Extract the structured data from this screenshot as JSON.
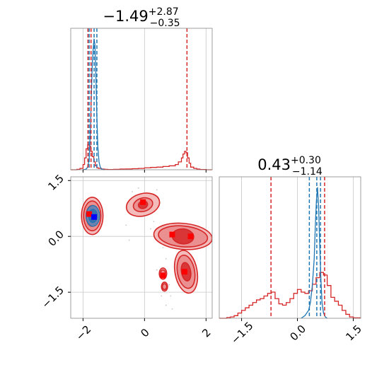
{
  "chart_data": {
    "type": "corner",
    "colors": {
      "red": "#d62728",
      "blue": "#1f77b4",
      "red_fill_light": "#f3b4b4",
      "red_fill_mid": "#e88888",
      "red_fill_dark": "#d62728",
      "marker_red": "#ff0000",
      "marker_blue": "#0000ff",
      "grid": "#c8c8c8",
      "spine": "#888888"
    },
    "grid": true,
    "panels": [
      {
        "id": "param1-hist",
        "type": "histogram",
        "title": {
          "median": "−1.49",
          "plus": "+2.87",
          "minus": "−0.35"
        },
        "xlim": [
          -2.4,
          2.2
        ],
        "xticks": [
          -2,
          0,
          2
        ],
        "show_tick_labels": false,
        "quantiles": {
          "red": [
            -1.84,
            -1.74,
            1.38
          ],
          "blue": [
            -1.8,
            -1.64,
            -1.55
          ]
        },
        "series": [
          {
            "name": "",
            "color": "#d62728",
            "x": [
              -2.4,
              -2.3,
              -2.2,
              -2.1,
              -2.0,
              -1.95,
              -1.9,
              -1.85,
              -1.8,
              -1.75,
              -1.7,
              -1.65,
              -1.6,
              -1.55,
              -1.5,
              -1.4,
              -1.3,
              -1.2,
              -1.0,
              -0.8,
              -0.6,
              -0.4,
              -0.2,
              0.0,
              0.2,
              0.4,
              0.6,
              0.8,
              1.0,
              1.1,
              1.2,
              1.25,
              1.3,
              1.35,
              1.4,
              1.45,
              1.5,
              1.6,
              1.7,
              1.8,
              2.0,
              2.2
            ],
            "y": [
              0,
              0,
              0.003,
              0.01,
              0.04,
              0.09,
              0.16,
              0.19,
              0.18,
              0.14,
              0.1,
              0.06,
              0.03,
              0.015,
              0.01,
              0.005,
              0.003,
              0.002,
              0.003,
              0.005,
              0.006,
              0.008,
              0.01,
              0.015,
              0.018,
              0.02,
              0.025,
              0.03,
              0.04,
              0.06,
              0.09,
              0.12,
              0.14,
              0.13,
              0.09,
              0.05,
              0.02,
              0.01,
              0.005,
              0.002,
              0,
              0
            ]
          },
          {
            "name": "",
            "color": "#1f77b4",
            "x": [
              -2.0,
              -1.9,
              -1.85,
              -1.8,
              -1.76,
              -1.73,
              -1.7,
              -1.67,
              -1.64,
              -1.61,
              -1.58,
              -1.55,
              -1.52,
              -1.48,
              -1.44,
              -1.4,
              -1.3
            ],
            "y": [
              0,
              0.005,
              0.02,
              0.08,
              0.3,
              0.55,
              0.8,
              0.92,
              1.0,
              0.95,
              0.7,
              0.4,
              0.18,
              0.06,
              0.02,
              0.005,
              0
            ]
          }
        ]
      },
      {
        "id": "param2-hist",
        "type": "histogram",
        "title": {
          "median": "0.43",
          "plus": "+0.30",
          "minus": "−1.14"
        },
        "xlim": [
          -2.1,
          1.7
        ],
        "xticks": [
          -1.5,
          0.0,
          1.5
        ],
        "xtick_labels": [
          "−1.5",
          "0.0",
          "1.5"
        ],
        "quantiles": {
          "red": [
            -0.71,
            0.73
          ],
          "blue": [
            0.32,
            0.52,
            0.62
          ]
        },
        "series": [
          {
            "name": "",
            "color": "#d62728",
            "x": [
              -2.1,
              -1.9,
              -1.8,
              -1.7,
              -1.6,
              -1.5,
              -1.4,
              -1.3,
              -1.2,
              -1.1,
              -1.0,
              -0.9,
              -0.8,
              -0.7,
              -0.6,
              -0.5,
              -0.4,
              -0.3,
              -0.2,
              -0.1,
              0.0,
              0.1,
              0.2,
              0.3,
              0.4,
              0.5,
              0.6,
              0.7,
              0.8,
              0.9,
              1.0,
              1.1,
              1.2,
              1.3,
              1.4,
              1.5,
              1.7
            ],
            "y": [
              0,
              0.005,
              0.01,
              0.02,
              0.04,
              0.06,
              0.08,
              0.1,
              0.12,
              0.14,
              0.15,
              0.17,
              0.19,
              0.2,
              0.15,
              0.11,
              0.1,
              0.12,
              0.15,
              0.19,
              0.22,
              0.2,
              0.19,
              0.21,
              0.26,
              0.31,
              0.35,
              0.33,
              0.25,
              0.16,
              0.13,
              0.1,
              0.06,
              0.03,
              0.01,
              0.003,
              0
            ]
          },
          {
            "name": "",
            "color": "#1f77b4",
            "x": [
              0.1,
              0.2,
              0.3,
              0.35,
              0.4,
              0.45,
              0.48,
              0.51,
              0.54,
              0.57,
              0.6,
              0.63,
              0.66,
              0.7,
              0.75,
              0.8
            ],
            "y": [
              0,
              0.02,
              0.06,
              0.12,
              0.25,
              0.45,
              0.7,
              0.9,
              1.0,
              0.85,
              0.55,
              0.3,
              0.12,
              0.04,
              0.01,
              0
            ]
          }
        ]
      },
      {
        "id": "joint-2d",
        "type": "contour",
        "xlim": [
          -2.4,
          2.2
        ],
        "ylim": [
          -2.2,
          1.6
        ],
        "xticks": [
          -2,
          0,
          2
        ],
        "xtick_labels": [
          "−2",
          "0",
          "2"
        ],
        "yticks": [
          -1.5,
          0.0,
          1.5
        ],
        "ytick_labels": [
          "−1.5",
          "0.0",
          "1.5"
        ],
        "clusters": [
          {
            "cx": -1.7,
            "cy": 0.55,
            "rx": [
              0.35,
              0.28,
              0.2
            ],
            "ry": [
              0.5,
              0.4,
              0.28
            ],
            "rot": 0
          },
          {
            "cx": -0.05,
            "cy": 0.85,
            "rx": [
              0.55,
              0.32,
              0.15
            ],
            "ry": [
              0.3,
              0.18,
              0.1
            ],
            "rot": -15
          },
          {
            "cx": 1.25,
            "cy": 0.0,
            "rx": [
              0.95,
              0.8,
              0.35
            ],
            "ry": [
              0.35,
              0.28,
              0.2
            ],
            "rot": 5
          },
          {
            "cx": 1.35,
            "cy": -0.95,
            "rx": [
              0.36,
              0.28,
              0.15
            ],
            "ry": [
              0.58,
              0.45,
              0.25
            ],
            "rot": -10
          },
          {
            "cx": 0.6,
            "cy": -1.0,
            "rx": [
              0.12,
              0.08,
              0.0
            ],
            "ry": [
              0.15,
              0.1,
              0.0
            ],
            "rot": 0
          },
          {
            "cx": 0.65,
            "cy": -1.35,
            "rx": [
              0.1,
              0.07,
              0.0
            ],
            "ry": [
              0.12,
              0.08,
              0.0
            ],
            "rot": 0
          }
        ],
        "blue_contour": {
          "cx": -1.68,
          "cy": 0.55,
          "rx": [
            0.22,
            0.14
          ],
          "ry": [
            0.28,
            0.18
          ]
        },
        "markers_red": [
          [
            -1.8,
            0.6
          ],
          [
            -0.05,
            0.92
          ],
          [
            0.9,
            0.05
          ],
          [
            1.5,
            0.0
          ],
          [
            1.3,
            -0.95
          ],
          [
            0.6,
            -1.05
          ]
        ],
        "markers_blue": [
          [
            -1.64,
            0.52
          ]
        ],
        "scatter": [
          [
            -0.4,
            1.2
          ],
          [
            -0.3,
            1.1
          ],
          [
            0.4,
            1.25
          ],
          [
            0.45,
            1.0
          ],
          [
            0.3,
            0.4
          ],
          [
            0.2,
            0.2
          ],
          [
            -0.5,
            -0.1
          ],
          [
            0.6,
            -0.3
          ],
          [
            0.7,
            -0.6
          ],
          [
            0.8,
            -1.3
          ],
          [
            0.55,
            -1.6
          ],
          [
            0.7,
            -1.85
          ],
          [
            0.9,
            -1.95
          ],
          [
            -0.2,
            1.3
          ],
          [
            0.5,
            0.9
          ],
          [
            0.1,
            0.7
          ],
          [
            0.65,
            -0.2
          ],
          [
            0.85,
            -1.6
          ],
          [
            -0.6,
            0.3
          ],
          [
            0.4,
            -0.9
          ]
        ]
      }
    ]
  }
}
